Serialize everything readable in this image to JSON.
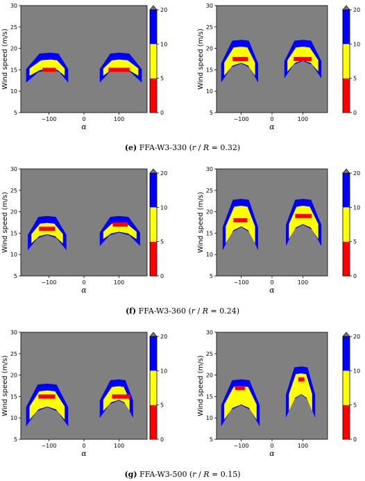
{
  "colors": {
    "background": "#808080",
    "red": "#ff0000",
    "yellow": "#ffff00",
    "blue": "#0000ff",
    "arrow": "#777777"
  },
  "captions": [
    {
      "label": "(e)",
      "name": "FFA-W3-330",
      "open": "(",
      "r": "r",
      "slash": " / ",
      "R": "R",
      "eq": " = 0.32)"
    },
    {
      "label": "(f)",
      "name": "FFA-W3-360",
      "open": "(",
      "r": "r",
      "slash": " / ",
      "R": "R",
      "eq": " = 0.24)"
    },
    {
      "label": "(g)",
      "name": "FFA-W3-500",
      "open": "(",
      "r": "r",
      "slash": " / ",
      "R": "R",
      "eq": " = 0.15)"
    }
  ],
  "chart_data": [
    {
      "type": "heatmap",
      "panel": "e-left",
      "xlabel": "α",
      "ylabel": "Wind speed (m/s)",
      "xlim": [
        -180,
        180
      ],
      "ylim": [
        5,
        30
      ],
      "xticks": [
        "−100",
        "0",
        "100"
      ],
      "yticks": [
        "5",
        "10",
        "15",
        "20",
        "25",
        "30"
      ],
      "colorbar": {
        "levels": [
          0,
          5,
          10,
          20
        ],
        "ticks": [
          "0",
          "5",
          "10",
          "20"
        ],
        "colors": [
          "red",
          "yellow",
          "blue"
        ],
        "extend": "max"
      },
      "blobs": [
        {
          "x": [
            -165,
            -45
          ],
          "peak": -95,
          "ybase": 12,
          "ytop": 19,
          "ycore": 15,
          "redx": [
            -118,
            -80
          ]
        },
        {
          "x": [
            45,
            165
          ],
          "peak": 100,
          "ybase": 12,
          "ytop": 19,
          "ycore": 15,
          "redx": [
            70,
            130
          ]
        }
      ]
    },
    {
      "type": "heatmap",
      "panel": "e-right",
      "xlabel": "α",
      "ylabel": "Wind speed (m/s)",
      "xlim": [
        -180,
        180
      ],
      "ylim": [
        5,
        30
      ],
      "xticks": [
        "−100",
        "0",
        "100"
      ],
      "yticks": [
        "5",
        "10",
        "15",
        "20",
        "25",
        "30"
      ],
      "colorbar": {
        "levels": [
          0,
          5,
          10,
          20
        ],
        "ticks": [
          "0",
          "5",
          "10",
          "20"
        ],
        "colors": [
          "red",
          "yellow",
          "blue"
        ],
        "extend": "max"
      },
      "blobs": [
        {
          "x": [
            -165,
            -45
          ],
          "peak": -100,
          "ybase": 12,
          "ytop": 22,
          "ycore": 17.5,
          "redx": [
            -128,
            -78
          ]
        },
        {
          "x": [
            40,
            160
          ],
          "peak": 100,
          "ybase": 13,
          "ytop": 22,
          "ycore": 17.5,
          "redx": [
            70,
            128
          ]
        }
      ]
    },
    {
      "type": "heatmap",
      "panel": "f-left",
      "xlabel": "α",
      "ylabel": "Wind speed (m/s)",
      "xlim": [
        -180,
        180
      ],
      "ylim": [
        5,
        30
      ],
      "xticks": [
        "−100",
        "0",
        "100"
      ],
      "yticks": [
        "5",
        "10",
        "15",
        "20",
        "25",
        "30"
      ],
      "colorbar": {
        "levels": [
          0,
          5,
          10,
          20
        ],
        "ticks": [
          "0",
          "5",
          "10",
          "20"
        ],
        "colors": [
          "red",
          "yellow",
          "blue"
        ],
        "extend": "max"
      },
      "blobs": [
        {
          "x": [
            -160,
            -50
          ],
          "peak": -105,
          "ybase": 11,
          "ytop": 19,
          "ycore": 16,
          "redx": [
            -128,
            -82
          ]
        },
        {
          "x": [
            45,
            160
          ],
          "peak": 100,
          "ybase": 12,
          "ytop": 19,
          "ycore": 17,
          "redx": [
            82,
            125
          ]
        }
      ]
    },
    {
      "type": "heatmap",
      "panel": "f-right",
      "xlabel": "α",
      "ylabel": "Wind speed (m/s)",
      "xlim": [
        -180,
        180
      ],
      "ylim": [
        5,
        30
      ],
      "xticks": [
        "−100",
        "0",
        "100"
      ],
      "yticks": [
        "5",
        "10",
        "15",
        "20",
        "25",
        "30"
      ],
      "colorbar": {
        "levels": [
          0,
          5,
          10,
          20
        ],
        "ticks": [
          "0",
          "5",
          "10",
          "20"
        ],
        "colors": [
          "red",
          "yellow",
          "blue"
        ],
        "extend": "max"
      },
      "blobs": [
        {
          "x": [
            -160,
            -45
          ],
          "peak": -100,
          "ybase": 11,
          "ytop": 23,
          "ycore": 18,
          "redx": [
            -125,
            -80
          ]
        },
        {
          "x": [
            45,
            160
          ],
          "peak": 100,
          "ybase": 12,
          "ytop": 23,
          "ycore": 19,
          "redx": [
            75,
            128
          ]
        }
      ]
    },
    {
      "type": "heatmap",
      "panel": "g-left",
      "xlabel": "α",
      "ylabel": "Wind speed (m/s)",
      "xlim": [
        -180,
        180
      ],
      "ylim": [
        5,
        30
      ],
      "xticks": [
        "−100",
        "0",
        "100"
      ],
      "yticks": [
        "5",
        "10",
        "15",
        "20",
        "25",
        "30"
      ],
      "colorbar": {
        "levels": [
          0,
          5,
          10,
          20
        ],
        "ticks": [
          "0",
          "5",
          "10",
          "20"
        ],
        "colors": [
          "red",
          "yellow",
          "blue"
        ],
        "extend": "max"
      },
      "blobs": [
        {
          "x": [
            -165,
            -45
          ],
          "peak": -105,
          "ybase": 8,
          "ytop": 18,
          "ycore": 15,
          "redx": [
            -130,
            -82
          ]
        },
        {
          "x": [
            45,
            140
          ],
          "peak": 100,
          "ybase": 10,
          "ytop": 19,
          "ycore": 15,
          "redx": [
            80,
            132
          ]
        }
      ]
    },
    {
      "type": "heatmap",
      "panel": "g-right",
      "xlabel": "α",
      "ylabel": "Wind speed (m/s)",
      "xlim": [
        -180,
        180
      ],
      "ylim": [
        5,
        30
      ],
      "xticks": [
        "−100",
        "0",
        "100"
      ],
      "yticks": [
        "5",
        "10",
        "15",
        "20",
        "25",
        "30"
      ],
      "colorbar": {
        "levels": [
          0,
          5,
          10,
          20
        ],
        "ticks": [
          "0",
          "5",
          "10",
          "20"
        ],
        "colors": [
          "red",
          "yellow",
          "blue"
        ],
        "extend": "max"
      },
      "blobs": [
        {
          "x": [
            -165,
            -40
          ],
          "peak": -100,
          "ybase": 8,
          "ytop": 19,
          "ycore": 17,
          "redx": [
            -120,
            -88
          ]
        },
        {
          "x": [
            45,
            140
          ],
          "peak": 95,
          "ybase": 10,
          "ytop": 22,
          "ycore": 19,
          "redx": [
            85,
            105
          ]
        }
      ]
    }
  ]
}
